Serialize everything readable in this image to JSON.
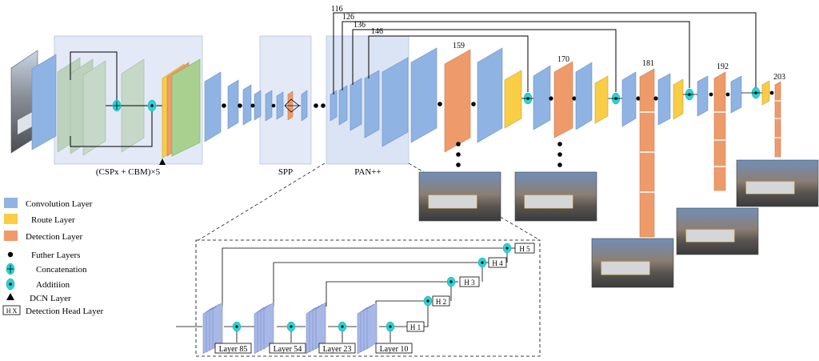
{
  "colors": {
    "conv": "#8fb3e3",
    "conv_dark": "#5d86c4",
    "route": "#f9cd45",
    "detection": "#ee9a6a",
    "dcn_region": "#dbe4f4",
    "module_box": "#e3e9f6",
    "addition": "#28d3d6",
    "dot": "#000000"
  },
  "modules": {
    "backbone_label": "(CSPx + CBM)×5",
    "spp_label": "SPP",
    "pan_label": "PAN++"
  },
  "skip_labels": [
    "116",
    "126",
    "136",
    "146"
  ],
  "detection_labels": [
    "159",
    "170",
    "181",
    "192",
    "203"
  ],
  "legend": {
    "conv": "Convolution Layer",
    "route": "Route Layer",
    "detection": "Detection Layer",
    "further": "Futher Layers",
    "concat": "Concatenation",
    "add": "Additiion",
    "dcn": "DCN Layer",
    "head_symbol": "H X",
    "head": "Detection Head Layer"
  },
  "inset": {
    "layers": [
      "Layer 85",
      "Layer 54",
      "Layer 23",
      "Layer 10"
    ],
    "heads": [
      "H 1",
      "H 2",
      "H 3",
      "H 4",
      "H 5"
    ]
  }
}
